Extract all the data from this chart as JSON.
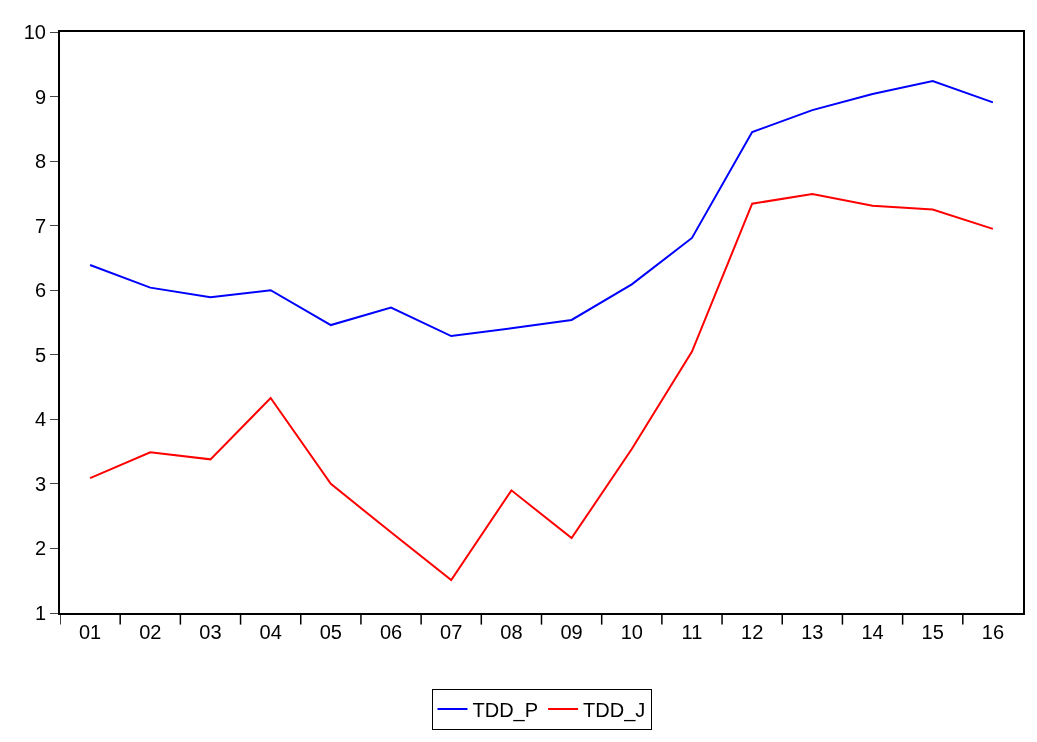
{
  "chart_data": {
    "type": "line",
    "categories": [
      "01",
      "02",
      "03",
      "04",
      "05",
      "06",
      "07",
      "08",
      "09",
      "10",
      "11",
      "12",
      "13",
      "14",
      "15",
      "16"
    ],
    "series": [
      {
        "name": "TDD_P",
        "color": "#0000ff",
        "values": [
          6.39,
          6.04,
          5.89,
          6.0,
          5.46,
          5.73,
          5.29,
          5.41,
          5.54,
          6.09,
          6.81,
          8.45,
          8.79,
          9.04,
          9.24,
          8.91
        ]
      },
      {
        "name": "TDD_J",
        "color": "#ff0000",
        "values": [
          3.09,
          3.49,
          3.38,
          4.33,
          3.0,
          2.25,
          1.51,
          2.9,
          2.16,
          3.54,
          5.05,
          7.34,
          7.49,
          7.31,
          7.25,
          6.95
        ]
      }
    ],
    "ylim": [
      1,
      10
    ],
    "yticks": [
      1,
      2,
      3,
      4,
      5,
      6,
      7,
      8,
      9,
      10
    ],
    "legend": "bottom",
    "marker": "none",
    "line_style": "solid"
  }
}
